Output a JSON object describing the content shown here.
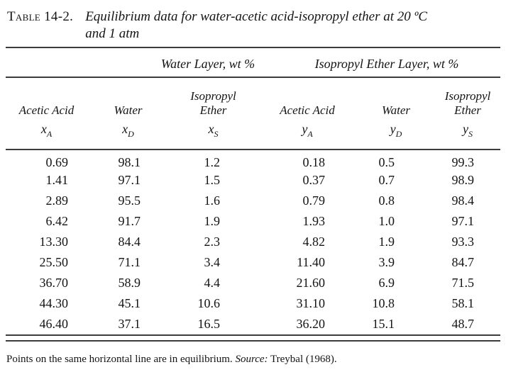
{
  "caption": {
    "label": "Table 14-2.",
    "title_line1": "Equilibrium data for water-acetic acid-isopropyl ether at 20 ºC",
    "title_line2": "and 1 atm"
  },
  "groups": [
    {
      "label": "Water Layer, wt %"
    },
    {
      "label": "Isopropyl Ether Layer, wt %"
    }
  ],
  "columns": [
    {
      "l1": "",
      "l2": "Acetic Acid",
      "v": "x",
      "s": "A"
    },
    {
      "l1": "",
      "l2": "Water",
      "v": "x",
      "s": "D"
    },
    {
      "l1": "Isopropyl",
      "l2": "Ether",
      "v": "x",
      "s": "S"
    },
    {
      "l1": "",
      "l2": "Acetic Acid",
      "v": "y",
      "s": "A"
    },
    {
      "l1": "",
      "l2": "Water",
      "v": "y",
      "s": "D"
    },
    {
      "l1": "Isopropyl",
      "l2": "Ether",
      "v": "y",
      "s": "S"
    }
  ],
  "rows": [
    [
      "0.69",
      "98.1",
      "1.2",
      "0.18",
      "0.5",
      "99.3"
    ],
    [
      "1.41",
      "97.1",
      "1.5",
      "0.37",
      "0.7",
      "98.9"
    ],
    [
      "2.89",
      "95.5",
      "1.6",
      "0.79",
      "0.8",
      "98.4"
    ],
    [
      "6.42",
      "91.7",
      "1.9",
      "1.93",
      "1.0",
      "97.1"
    ],
    [
      "13.30",
      "84.4",
      "2.3",
      "4.82",
      "1.9",
      "93.3"
    ],
    [
      "25.50",
      "71.1",
      "3.4",
      "11.40",
      "3.9",
      "84.7"
    ],
    [
      "36.70",
      "58.9",
      "4.4",
      "21.60",
      "6.9",
      "71.5"
    ],
    [
      "44.30",
      "45.1",
      "10.6",
      "31.10",
      "10.8",
      "58.1"
    ],
    [
      "46.40",
      "37.1",
      "16.5",
      "36.20",
      "15.1",
      "48.7"
    ]
  ],
  "footnote": {
    "text": "Points on the same horizontal line are in equilibrium. ",
    "source_label": "Source:",
    "source_text": " Treybal (1968)."
  }
}
